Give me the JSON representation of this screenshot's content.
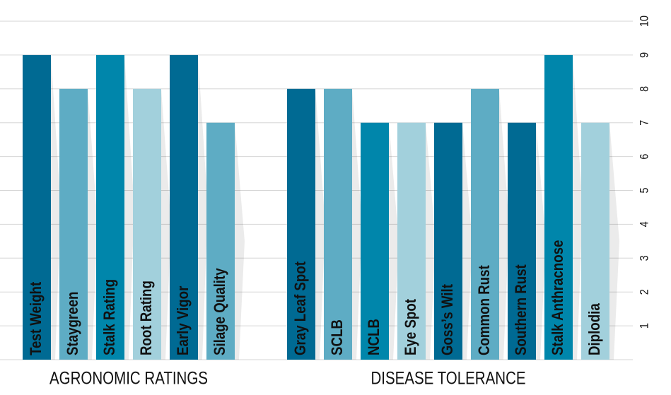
{
  "chart_data": {
    "type": "bar",
    "groups": [
      {
        "name": "AGRONOMIC RATINGS",
        "categories": [
          "Test Weight",
          "Staygreen",
          "Stalk Rating",
          "Root Rating",
          "Early Vigor",
          "Silage Quality"
        ],
        "values": [
          9,
          8,
          9,
          8,
          9,
          7
        ],
        "colors": [
          "#006a93",
          "#5eacc4",
          "#0086ab",
          "#a2d0dc",
          "#006a93",
          "#5eacc4"
        ]
      },
      {
        "name": "DISEASE TOLERANCE",
        "categories": [
          "Gray Leaf Spot",
          "SCLB",
          "NCLB",
          "Eye Spot",
          "Goss’s Wilt",
          "Common Rust",
          "Southern Rust",
          "Stalk Anthracnose",
          "Diplodia"
        ],
        "values": [
          8,
          8,
          7,
          7,
          7,
          8,
          7,
          9,
          7
        ],
        "colors": [
          "#006a93",
          "#5eacc4",
          "#0086ab",
          "#a2d0dc",
          "#006a93",
          "#5eacc4",
          "#006a93",
          "#0086ab",
          "#a2d0dc"
        ]
      }
    ],
    "ylim": [
      0,
      10
    ],
    "yticks": [
      1,
      2,
      3,
      4,
      5,
      6,
      7,
      8,
      9,
      10
    ],
    "grid": true
  }
}
